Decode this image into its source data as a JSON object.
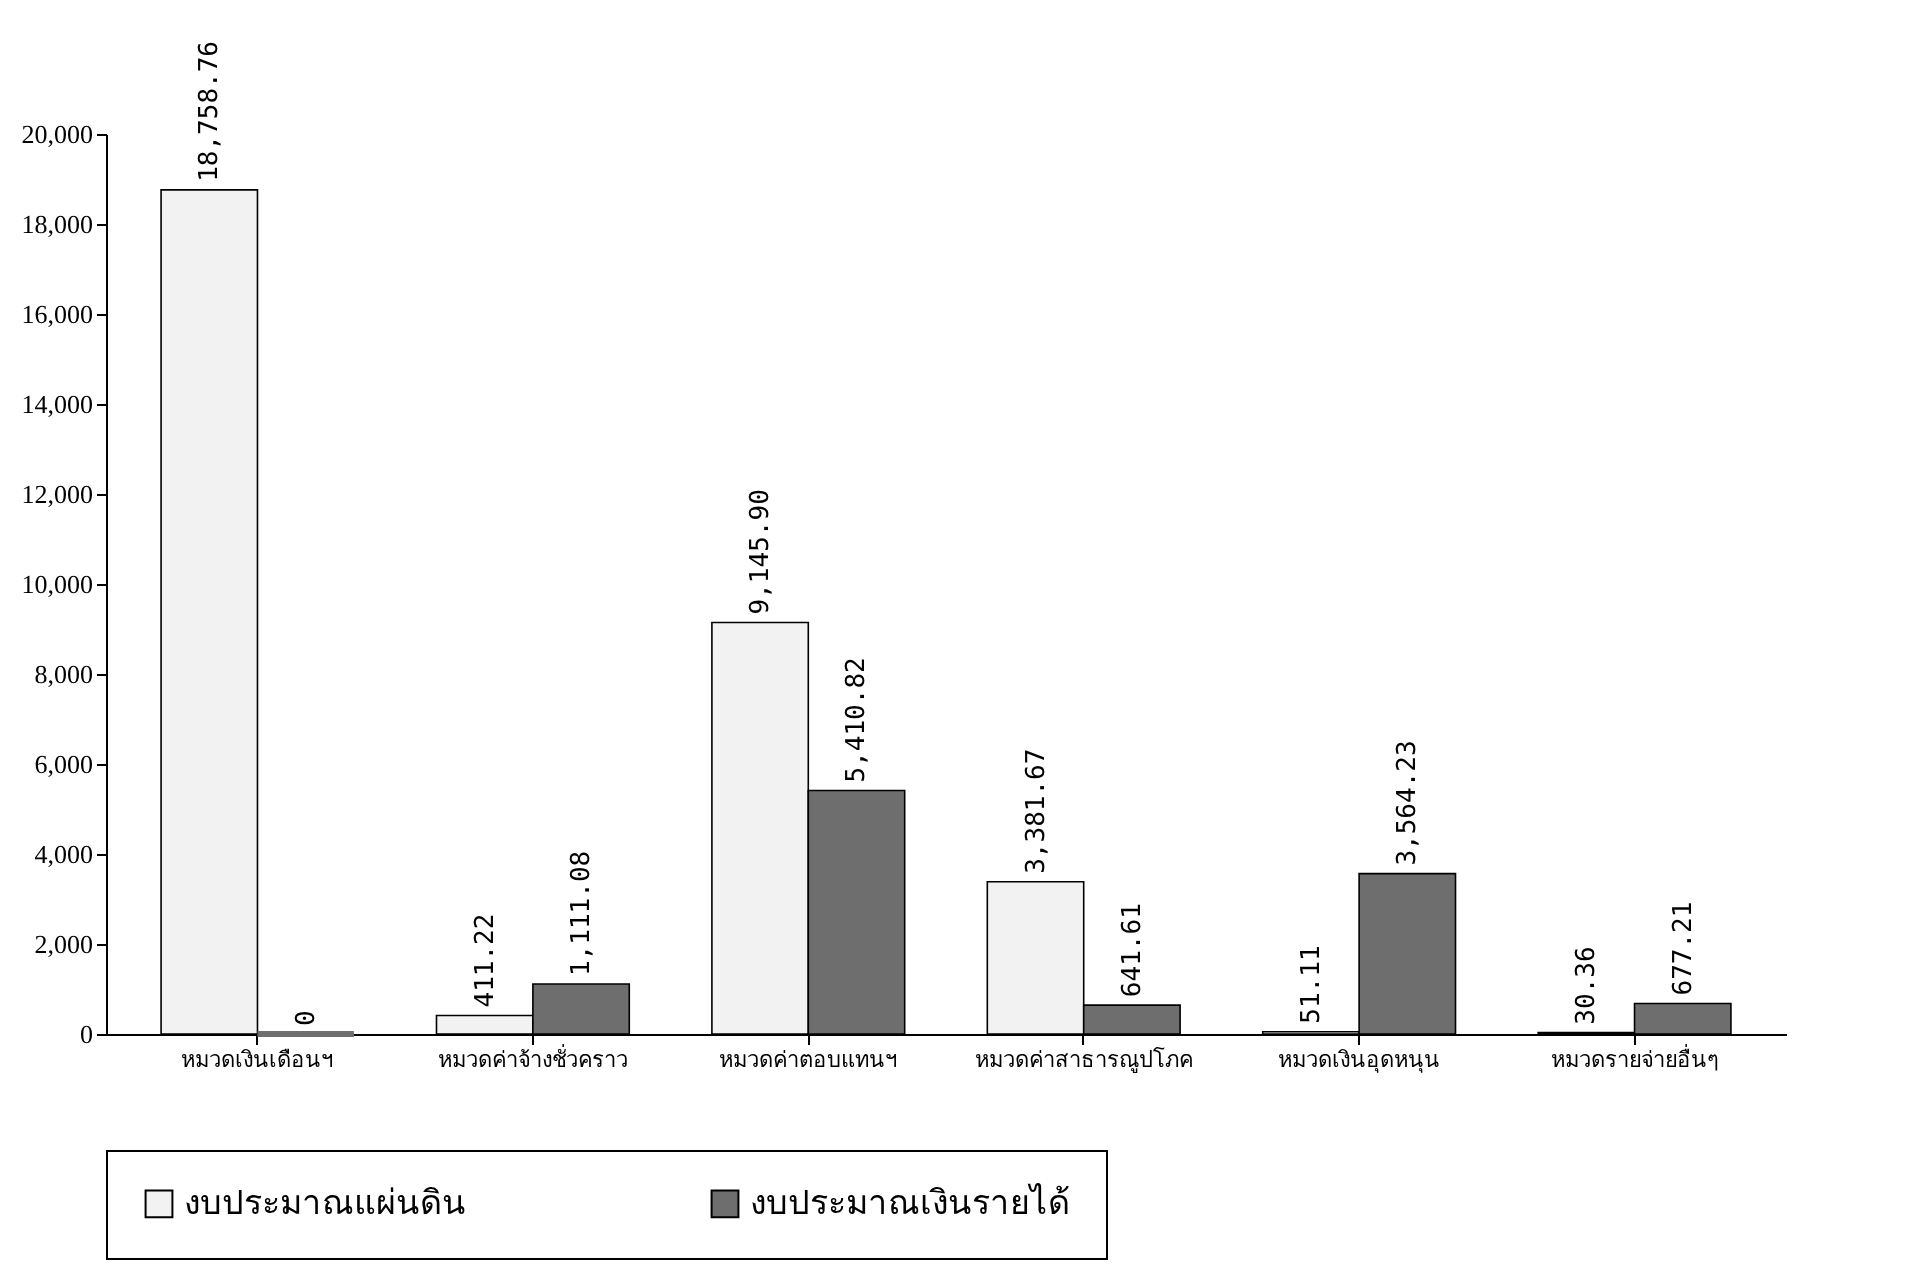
{
  "chart_data": {
    "type": "bar",
    "categories": [
      "หมวดเงินเดือนฯ",
      "หมวดค่าจ้างชั่วคราว",
      "หมวดค่าตอบแทนฯ",
      "หมวดค่าสาธารณูปโภค",
      "หมวดเงินอุดหนุน",
      "หมวดรายจ่ายอื่นๆ"
    ],
    "series": [
      {
        "name": "งบประมาณแผ่นดิน",
        "color": "#f2f2f2",
        "values": [
          18758.76,
          411.22,
          9145.9,
          3381.67,
          51.11,
          30.36
        ],
        "value_labels": [
          "18,758.76",
          "411.22",
          "9,145.90",
          "3,381.67",
          "51.11",
          "30.36"
        ]
      },
      {
        "name": "งบประมาณเงินรายได้",
        "color": "#6e6e6e",
        "values": [
          0,
          1111.08,
          5410.82,
          641.61,
          3564.23,
          677.21
        ],
        "value_labels": [
          "0",
          "1,111.08",
          "5,410.82",
          "641.61",
          "3,564.23",
          "677.21"
        ]
      }
    ],
    "ylim": [
      0,
      20000
    ],
    "yticks": [
      0,
      {
        "value": 2000,
        "label": "2,000"
      },
      {
        "value": 4000,
        "label": "4,000"
      },
      {
        "value": 6000,
        "label": "6,000"
      },
      {
        "value": 8000,
        "label": "8,000"
      },
      {
        "value": 10000,
        "label": "10,000"
      },
      {
        "value": 12000,
        "label": "12,000"
      },
      {
        "value": 14000,
        "label": "14,000"
      },
      {
        "value": 16000,
        "label": "16,000"
      },
      {
        "value": 18000,
        "label": "18,000"
      },
      {
        "value": 20000,
        "label": "20,000"
      }
    ],
    "grid": false,
    "legend": "bottom"
  }
}
